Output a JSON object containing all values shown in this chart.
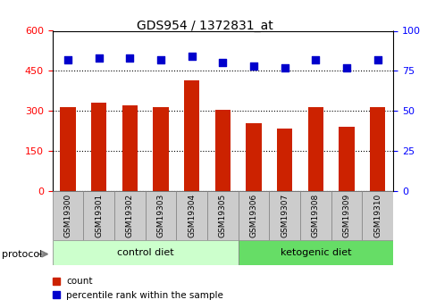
{
  "title": "GDS954 / 1372831_at",
  "samples": [
    "GSM19300",
    "GSM19301",
    "GSM19302",
    "GSM19303",
    "GSM19304",
    "GSM19305",
    "GSM19306",
    "GSM19307",
    "GSM19308",
    "GSM19309",
    "GSM19310"
  ],
  "bar_values": [
    315,
    330,
    320,
    315,
    415,
    305,
    255,
    235,
    315,
    240,
    315
  ],
  "dot_values": [
    82,
    83,
    83,
    82,
    84,
    80,
    78,
    77,
    82,
    77,
    82
  ],
  "ylim_left": [
    0,
    600
  ],
  "ylim_right": [
    0,
    100
  ],
  "yticks_left": [
    0,
    150,
    300,
    450,
    600
  ],
  "yticks_right": [
    0,
    25,
    50,
    75,
    100
  ],
  "bar_color": "#cc2200",
  "dot_color": "#0000cc",
  "grid_color": "black",
  "plot_bg": "#ffffff",
  "control_label": "control diet",
  "ketogenic_label": "ketogenic diet",
  "protocol_label": "protocol",
  "legend_count": "count",
  "legend_percentile": "percentile rank within the sample",
  "tick_area_color": "#cccccc",
  "control_color": "#ccffcc",
  "ketogenic_color": "#66dd66",
  "n_control": 6,
  "n_ketogenic": 5
}
